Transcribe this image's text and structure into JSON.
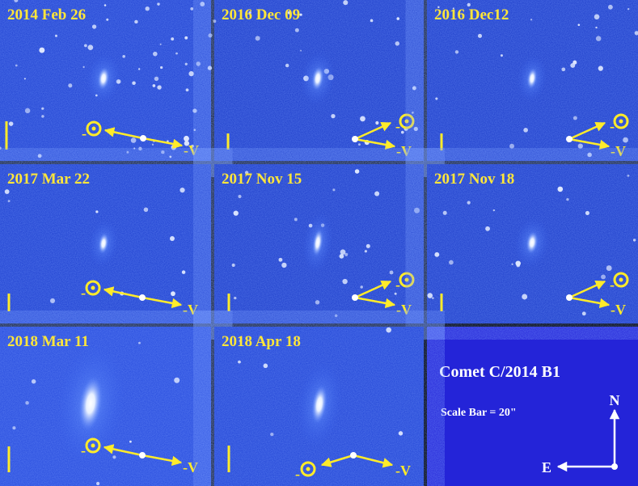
{
  "panels": [
    {
      "date": "2014 Feb 26",
      "sun_label": "-",
      "v_label": "-V"
    },
    {
      "date": "2016 Dec 09",
      "sun_label": "-",
      "v_label": "-V"
    },
    {
      "date": "2016 Dec12",
      "sun_label": "-",
      "v_label": "-V"
    },
    {
      "date": "2017 Mar 22",
      "sun_label": "-",
      "v_label": "-V"
    },
    {
      "date": "2017 Nov 15",
      "sun_label": "-",
      "v_label": "-V"
    },
    {
      "date": "2017 Nov 18",
      "sun_label": "-",
      "v_label": "-V"
    },
    {
      "date": "2018 Mar 11",
      "sun_label": "-",
      "v_label": "-V"
    },
    {
      "date": "2018 Apr 18",
      "sun_label": "-",
      "v_label": "-V"
    }
  ],
  "legend": {
    "title": "Comet C/2014 B1",
    "scale": "Scale Bar = 20\"",
    "north": "N",
    "east": "E"
  }
}
